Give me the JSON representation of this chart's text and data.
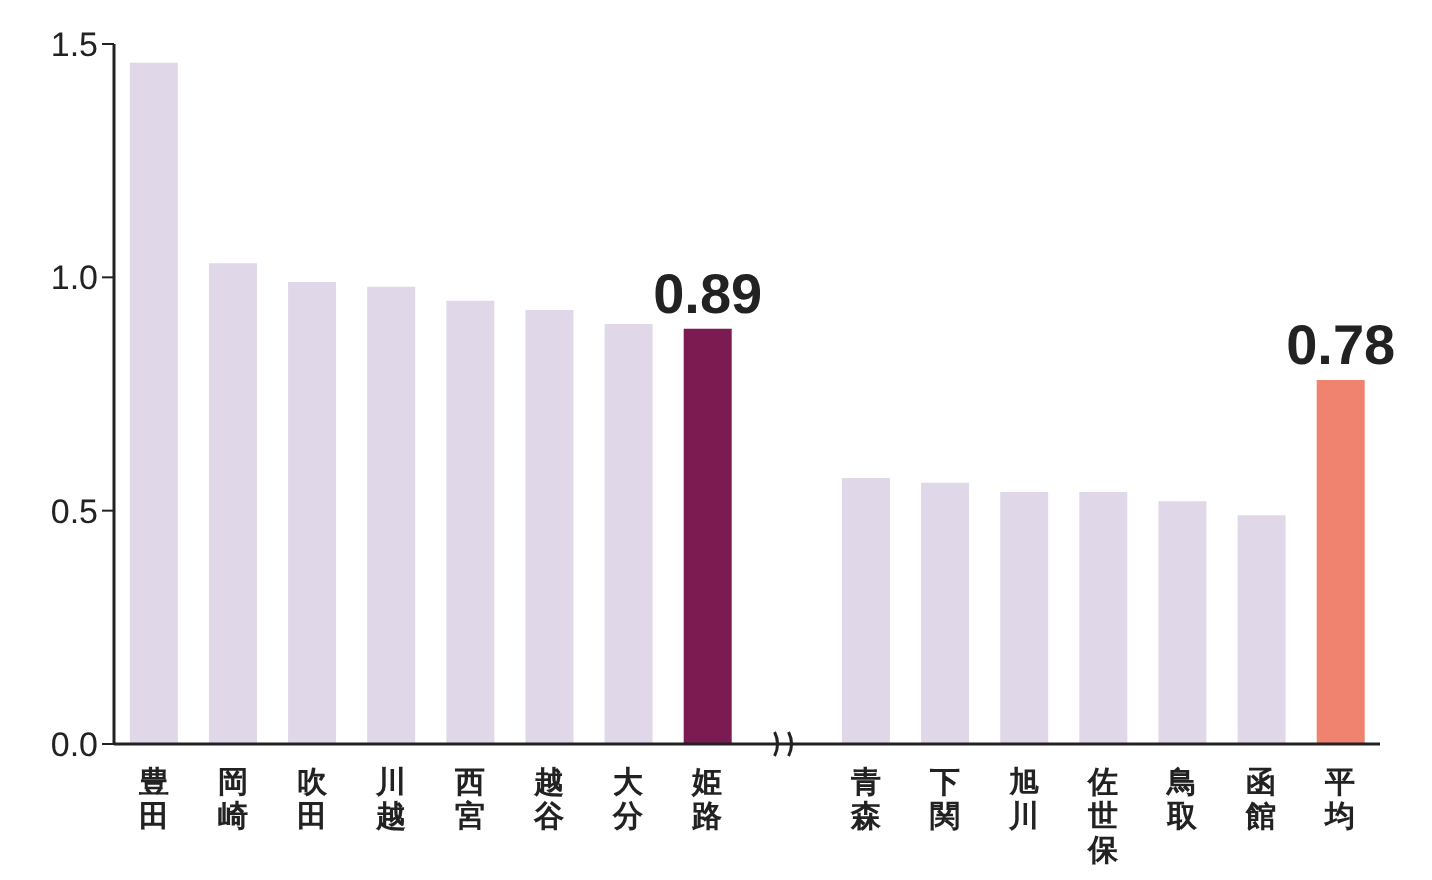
{
  "chart_data": {
    "type": "bar",
    "categories": [
      "豊田",
      "岡崎",
      "吹田",
      "川越",
      "西宮",
      "越谷",
      "大分",
      "姫路",
      null,
      "青森",
      "下関",
      "旭川",
      "佐世保",
      "鳥取",
      "函館",
      "平均"
    ],
    "values": [
      1.46,
      1.03,
      0.99,
      0.98,
      0.95,
      0.93,
      0.9,
      0.89,
      null,
      0.57,
      0.56,
      0.54,
      0.54,
      0.52,
      0.49,
      0.78
    ],
    "colors": [
      "#e0d7e9",
      "#e0d7e9",
      "#e0d7e9",
      "#e0d7e9",
      "#e0d7e9",
      "#e0d7e9",
      "#e0d7e9",
      "#7b1b51",
      null,
      "#e0d7e9",
      "#e0d7e9",
      "#e0d7e9",
      "#e0d7e9",
      "#e0d7e9",
      "#e0d7e9",
      "#ef836f"
    ],
    "value_labels": [
      null,
      null,
      null,
      null,
      null,
      null,
      null,
      "0.89",
      null,
      null,
      null,
      null,
      null,
      null,
      null,
      "0.78"
    ],
    "ylim": [
      0,
      1.5
    ],
    "yticks": [
      {
        "value": 0,
        "label": "0.0"
      },
      {
        "value": 0.5,
        "label": "0.5"
      },
      {
        "value": 1,
        "label": "1.0"
      },
      {
        "value": 1.5,
        "label": "1.5"
      }
    ],
    "grid": false,
    "legend": false
  }
}
